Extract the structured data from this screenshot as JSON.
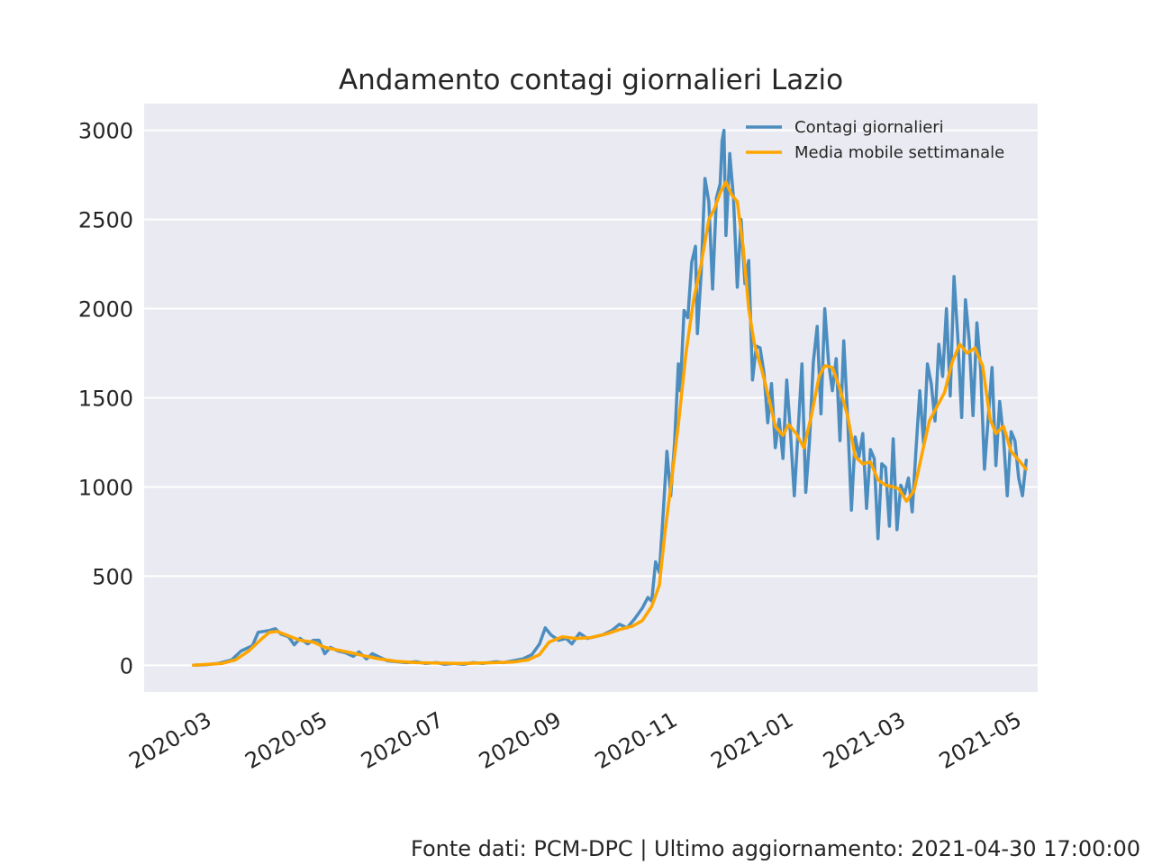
{
  "footer": "Fonte dati: PCM-DPC | Ultimo aggiornamento: 2021-04-30 17:00:00",
  "chart_data": {
    "type": "line",
    "title": "Andamento contagi giornalieri Lazio",
    "xlabel": "",
    "ylabel": "",
    "ylim": [
      -150,
      3150
    ],
    "yticks": [
      0,
      500,
      1000,
      1500,
      2000,
      2500,
      3000
    ],
    "xlim": [
      "2020-01-29",
      "2021-05-13"
    ],
    "xticks": [
      "2020-03",
      "2020-05",
      "2020-07",
      "2020-09",
      "2020-11",
      "2021-01",
      "2021-03",
      "2021-05"
    ],
    "grid": true,
    "legend_position": "top-right",
    "background_color": "#eaeaf2",
    "series": [
      {
        "name": "Contagi giornalieri",
        "color": "#4c8dbf",
        "points": [
          [
            "2020-02-24",
            0
          ],
          [
            "2020-03-01",
            3
          ],
          [
            "2020-03-08",
            10
          ],
          [
            "2020-03-15",
            30
          ],
          [
            "2020-03-20",
            80
          ],
          [
            "2020-03-26",
            110
          ],
          [
            "2020-03-29",
            185
          ],
          [
            "2020-04-01",
            190
          ],
          [
            "2020-04-04",
            195
          ],
          [
            "2020-04-07",
            205
          ],
          [
            "2020-04-10",
            175
          ],
          [
            "2020-04-14",
            160
          ],
          [
            "2020-04-17",
            115
          ],
          [
            "2020-04-20",
            150
          ],
          [
            "2020-04-24",
            120
          ],
          [
            "2020-04-27",
            140
          ],
          [
            "2020-04-30",
            140
          ],
          [
            "2020-05-03",
            65
          ],
          [
            "2020-05-06",
            100
          ],
          [
            "2020-05-10",
            80
          ],
          [
            "2020-05-14",
            70
          ],
          [
            "2020-05-18",
            50
          ],
          [
            "2020-05-21",
            75
          ],
          [
            "2020-05-25",
            35
          ],
          [
            "2020-05-28",
            65
          ],
          [
            "2020-06-01",
            45
          ],
          [
            "2020-06-05",
            25
          ],
          [
            "2020-06-10",
            20
          ],
          [
            "2020-06-15",
            15
          ],
          [
            "2020-06-20",
            20
          ],
          [
            "2020-06-25",
            10
          ],
          [
            "2020-07-01",
            15
          ],
          [
            "2020-07-05",
            5
          ],
          [
            "2020-07-10",
            10
          ],
          [
            "2020-07-15",
            5
          ],
          [
            "2020-07-20",
            15
          ],
          [
            "2020-07-25",
            10
          ],
          [
            "2020-08-01",
            20
          ],
          [
            "2020-08-05",
            15
          ],
          [
            "2020-08-10",
            25
          ],
          [
            "2020-08-15",
            35
          ],
          [
            "2020-08-20",
            60
          ],
          [
            "2020-08-24",
            120
          ],
          [
            "2020-08-27",
            210
          ],
          [
            "2020-08-30",
            170
          ],
          [
            "2020-09-03",
            140
          ],
          [
            "2020-09-07",
            150
          ],
          [
            "2020-09-10",
            120
          ],
          [
            "2020-09-14",
            180
          ],
          [
            "2020-09-18",
            150
          ],
          [
            "2020-09-22",
            160
          ],
          [
            "2020-09-26",
            170
          ],
          [
            "2020-10-01",
            195
          ],
          [
            "2020-10-05",
            230
          ],
          [
            "2020-10-09",
            210
          ],
          [
            "2020-10-13",
            260
          ],
          [
            "2020-10-17",
            320
          ],
          [
            "2020-10-20",
            380
          ],
          [
            "2020-10-22",
            360
          ],
          [
            "2020-10-24",
            580
          ],
          [
            "2020-10-26",
            520
          ],
          [
            "2020-10-28",
            850
          ],
          [
            "2020-10-30",
            1200
          ],
          [
            "2020-11-01",
            950
          ],
          [
            "2020-11-03",
            1250
          ],
          [
            "2020-11-05",
            1690
          ],
          [
            "2020-11-06",
            1540
          ],
          [
            "2020-11-08",
            1990
          ],
          [
            "2020-11-10",
            1950
          ],
          [
            "2020-11-12",
            2260
          ],
          [
            "2020-11-14",
            2350
          ],
          [
            "2020-11-15",
            1860
          ],
          [
            "2020-11-17",
            2200
          ],
          [
            "2020-11-19",
            2730
          ],
          [
            "2020-11-21",
            2600
          ],
          [
            "2020-11-23",
            2110
          ],
          [
            "2020-11-25",
            2620
          ],
          [
            "2020-11-27",
            2700
          ],
          [
            "2020-11-28",
            2940
          ],
          [
            "2020-11-29",
            3000
          ],
          [
            "2020-11-30",
            2410
          ],
          [
            "2020-12-02",
            2870
          ],
          [
            "2020-12-04",
            2620
          ],
          [
            "2020-12-06",
            2120
          ],
          [
            "2020-12-08",
            2500
          ],
          [
            "2020-12-10",
            2140
          ],
          [
            "2020-12-12",
            2270
          ],
          [
            "2020-12-14",
            1600
          ],
          [
            "2020-12-16",
            1790
          ],
          [
            "2020-12-18",
            1780
          ],
          [
            "2020-12-20",
            1640
          ],
          [
            "2020-12-22",
            1360
          ],
          [
            "2020-12-24",
            1580
          ],
          [
            "2020-12-26",
            1220
          ],
          [
            "2020-12-28",
            1380
          ],
          [
            "2020-12-30",
            1160
          ],
          [
            "2021-01-01",
            1600
          ],
          [
            "2021-01-03",
            1300
          ],
          [
            "2021-01-05",
            950
          ],
          [
            "2021-01-07",
            1320
          ],
          [
            "2021-01-09",
            1690
          ],
          [
            "2021-01-11",
            970
          ],
          [
            "2021-01-13",
            1260
          ],
          [
            "2021-01-15",
            1700
          ],
          [
            "2021-01-17",
            1900
          ],
          [
            "2021-01-19",
            1410
          ],
          [
            "2021-01-21",
            2000
          ],
          [
            "2021-01-23",
            1700
          ],
          [
            "2021-01-25",
            1540
          ],
          [
            "2021-01-27",
            1720
          ],
          [
            "2021-01-29",
            1260
          ],
          [
            "2021-01-31",
            1820
          ],
          [
            "2021-02-02",
            1400
          ],
          [
            "2021-02-04",
            870
          ],
          [
            "2021-02-06",
            1280
          ],
          [
            "2021-02-08",
            1170
          ],
          [
            "2021-02-10",
            1300
          ],
          [
            "2021-02-12",
            880
          ],
          [
            "2021-02-14",
            1210
          ],
          [
            "2021-02-16",
            1160
          ],
          [
            "2021-02-18",
            710
          ],
          [
            "2021-02-20",
            1130
          ],
          [
            "2021-02-22",
            1110
          ],
          [
            "2021-02-24",
            780
          ],
          [
            "2021-02-26",
            1270
          ],
          [
            "2021-02-28",
            760
          ],
          [
            "2021-03-02",
            1010
          ],
          [
            "2021-03-04",
            960
          ],
          [
            "2021-03-06",
            1050
          ],
          [
            "2021-03-08",
            860
          ],
          [
            "2021-03-10",
            1210
          ],
          [
            "2021-03-12",
            1540
          ],
          [
            "2021-03-14",
            1240
          ],
          [
            "2021-03-16",
            1690
          ],
          [
            "2021-03-18",
            1580
          ],
          [
            "2021-03-20",
            1370
          ],
          [
            "2021-03-22",
            1800
          ],
          [
            "2021-03-24",
            1620
          ],
          [
            "2021-03-26",
            2000
          ],
          [
            "2021-03-28",
            1510
          ],
          [
            "2021-03-30",
            2180
          ],
          [
            "2021-04-01",
            1830
          ],
          [
            "2021-04-03",
            1390
          ],
          [
            "2021-04-05",
            2050
          ],
          [
            "2021-04-07",
            1820
          ],
          [
            "2021-04-09",
            1400
          ],
          [
            "2021-04-11",
            1920
          ],
          [
            "2021-04-13",
            1660
          ],
          [
            "2021-04-15",
            1100
          ],
          [
            "2021-04-17",
            1390
          ],
          [
            "2021-04-19",
            1670
          ],
          [
            "2021-04-21",
            1120
          ],
          [
            "2021-04-23",
            1480
          ],
          [
            "2021-04-25",
            1280
          ],
          [
            "2021-04-27",
            950
          ],
          [
            "2021-04-29",
            1310
          ],
          [
            "2021-05-01",
            1260
          ],
          [
            "2021-05-03",
            1050
          ],
          [
            "2021-05-05",
            950
          ],
          [
            "2021-05-07",
            1150
          ]
        ]
      },
      {
        "name": "Media mobile settimanale",
        "color": "#ffa500",
        "points": [
          [
            "2020-02-24",
            0
          ],
          [
            "2020-03-10",
            10
          ],
          [
            "2020-03-17",
            30
          ],
          [
            "2020-03-24",
            80
          ],
          [
            "2020-03-31",
            150
          ],
          [
            "2020-04-04",
            185
          ],
          [
            "2020-04-08",
            190
          ],
          [
            "2020-04-14",
            165
          ],
          [
            "2020-04-20",
            140
          ],
          [
            "2020-04-27",
            130
          ],
          [
            "2020-05-03",
            100
          ],
          [
            "2020-05-10",
            85
          ],
          [
            "2020-05-17",
            70
          ],
          [
            "2020-05-25",
            50
          ],
          [
            "2020-06-01",
            35
          ],
          [
            "2020-06-10",
            22
          ],
          [
            "2020-06-20",
            15
          ],
          [
            "2020-07-01",
            12
          ],
          [
            "2020-07-15",
            10
          ],
          [
            "2020-08-01",
            15
          ],
          [
            "2020-08-10",
            18
          ],
          [
            "2020-08-18",
            30
          ],
          [
            "2020-08-24",
            60
          ],
          [
            "2020-08-29",
            130
          ],
          [
            "2020-09-05",
            160
          ],
          [
            "2020-09-12",
            150
          ],
          [
            "2020-09-20",
            155
          ],
          [
            "2020-09-28",
            175
          ],
          [
            "2020-10-05",
            200
          ],
          [
            "2020-10-12",
            220
          ],
          [
            "2020-10-17",
            250
          ],
          [
            "2020-10-22",
            330
          ],
          [
            "2020-10-26",
            450
          ],
          [
            "2020-10-29",
            750
          ],
          [
            "2020-11-01",
            1000
          ],
          [
            "2020-11-05",
            1350
          ],
          [
            "2020-11-09",
            1750
          ],
          [
            "2020-11-13",
            2050
          ],
          [
            "2020-11-17",
            2250
          ],
          [
            "2020-11-21",
            2500
          ],
          [
            "2020-11-24",
            2560
          ],
          [
            "2020-11-27",
            2650
          ],
          [
            "2020-11-30",
            2710
          ],
          [
            "2020-12-03",
            2640
          ],
          [
            "2020-12-06",
            2600
          ],
          [
            "2020-12-09",
            2350
          ],
          [
            "2020-12-12",
            2000
          ],
          [
            "2020-12-15",
            1800
          ],
          [
            "2020-12-19",
            1650
          ],
          [
            "2020-12-23",
            1480
          ],
          [
            "2020-12-26",
            1340
          ],
          [
            "2020-12-30",
            1290
          ],
          [
            "2021-01-02",
            1350
          ],
          [
            "2021-01-06",
            1300
          ],
          [
            "2021-01-10",
            1220
          ],
          [
            "2021-01-14",
            1400
          ],
          [
            "2021-01-18",
            1620
          ],
          [
            "2021-01-21",
            1680
          ],
          [
            "2021-01-25",
            1670
          ],
          [
            "2021-01-29",
            1550
          ],
          [
            "2021-02-02",
            1400
          ],
          [
            "2021-02-06",
            1170
          ],
          [
            "2021-02-10",
            1130
          ],
          [
            "2021-02-14",
            1140
          ],
          [
            "2021-02-18",
            1040
          ],
          [
            "2021-02-22",
            1010
          ],
          [
            "2021-02-26",
            1000
          ],
          [
            "2021-03-01",
            990
          ],
          [
            "2021-03-05",
            920
          ],
          [
            "2021-03-09",
            980
          ],
          [
            "2021-03-13",
            1180
          ],
          [
            "2021-03-17",
            1370
          ],
          [
            "2021-03-21",
            1450
          ],
          [
            "2021-03-25",
            1530
          ],
          [
            "2021-03-29",
            1700
          ],
          [
            "2021-04-02",
            1800
          ],
          [
            "2021-04-06",
            1750
          ],
          [
            "2021-04-10",
            1780
          ],
          [
            "2021-04-14",
            1680
          ],
          [
            "2021-04-18",
            1380
          ],
          [
            "2021-04-21",
            1300
          ],
          [
            "2021-04-25",
            1340
          ],
          [
            "2021-04-29",
            1200
          ],
          [
            "2021-05-03",
            1150
          ],
          [
            "2021-05-07",
            1100
          ]
        ]
      }
    ]
  }
}
